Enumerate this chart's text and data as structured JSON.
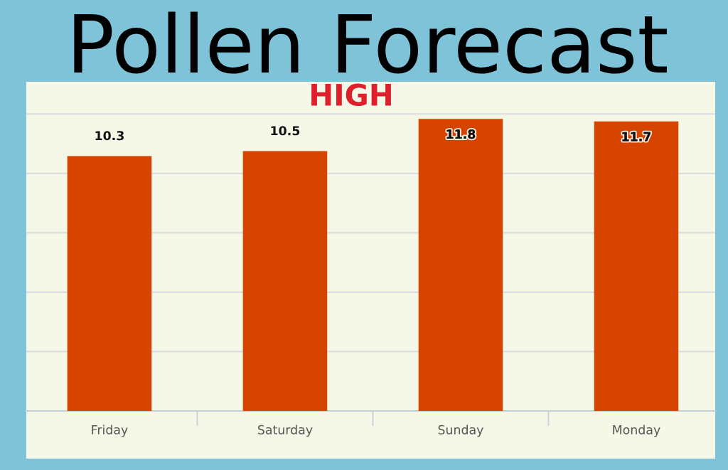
{
  "chart_data": {
    "type": "bar",
    "title": "Pollen Forecast",
    "annotations": [
      "HIGH"
    ],
    "categories": [
      "Friday",
      "Saturday",
      "Sunday",
      "Monday"
    ],
    "values": [
      10.3,
      10.5,
      11.8,
      11.7
    ],
    "color": "#d64400",
    "data_labels": true,
    "ylim": [
      0,
      13.3
    ],
    "yticks": [
      {
        "value": 0,
        "label": null
      },
      {
        "value": 2.4,
        "label": null
      },
      {
        "value": 4.8,
        "label": null
      },
      {
        "value": 7.2,
        "label": null
      },
      {
        "value": 9.6,
        "label": null
      },
      {
        "value": 12,
        "label": null
      }
    ],
    "grid": "y",
    "tick_labels": "x"
  }
}
